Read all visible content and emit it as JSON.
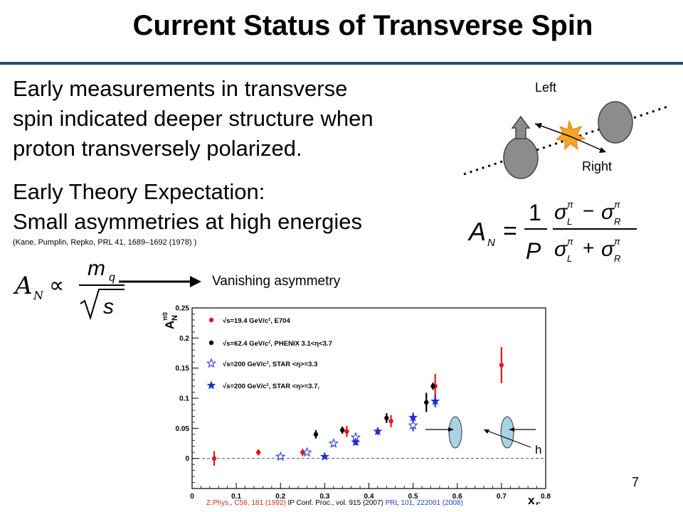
{
  "slide": {
    "title": "Current Status of Transverse Spin",
    "paragraph1_lines": [
      "Early measurements in transverse",
      "spin indicated deeper structure when",
      "proton transversely polarized."
    ],
    "paragraph2_lines": [
      "Early Theory Expectation:",
      "Small asymmetries at high energies"
    ],
    "citation": "(Kane, Pumplin, Repko, PRL 41, 1689–1692 (1978) )",
    "vanishing_label": "Vanishing asymmetry",
    "diagram_left": "Left",
    "diagram_right": "Right",
    "formula_an": {
      "lhs": "A",
      "lhs_sub": "N",
      "frac_num": "1",
      "frac_den": "P",
      "sigma": "σ",
      "sup": "π",
      "sub_l": "L",
      "sub_r": "R",
      "minus": "−",
      "plus": "+",
      "eq": "="
    },
    "formula_prop": {
      "lhs": "A",
      "lhs_sub": "N",
      "prop": "∝",
      "num": "m",
      "num_sub": "q",
      "den": "s"
    },
    "hadron_label": "h",
    "page_number": "7",
    "references": [
      {
        "text": "Z.Phys., C56, 181 (1992)",
        "color": "red"
      },
      {
        "text": " IP Conf. Proc., vol. 915 (2007) ",
        "color": "black"
      },
      {
        "text": "PRL 101, 222001 (2008)",
        "color": "blue"
      }
    ]
  },
  "chart_data": {
    "type": "scatter",
    "ylabel": "A",
    "ylabel_sub": "N",
    "ylabel_sup": "π0",
    "xlabel": "x",
    "xlabel_sub": "F",
    "xlim": [
      0,
      0.8
    ],
    "ylim": [
      -0.05,
      0.25
    ],
    "xticks": [
      "0",
      "0.1",
      "0.2",
      "0.3",
      "0.4",
      "0.5",
      "0.6",
      "0.7",
      "0.8"
    ],
    "yticks": [
      "0",
      "0.05",
      "0.1",
      "0.15",
      "0.2",
      "0.25"
    ],
    "legend_position": "top-left",
    "series": [
      {
        "name": "√s=19.4 GeV/c², E704",
        "color": "#e8141c",
        "marker": "circle",
        "points": [
          {
            "x": 0.05,
            "y": 0.0,
            "err": 0.012
          },
          {
            "x": 0.15,
            "y": 0.01,
            "err": 0.005
          },
          {
            "x": 0.25,
            "y": 0.01,
            "err": 0.006
          },
          {
            "x": 0.35,
            "y": 0.045,
            "err": 0.009
          },
          {
            "x": 0.45,
            "y": 0.062,
            "err": 0.01
          },
          {
            "x": 0.55,
            "y": 0.12,
            "err": 0.02
          },
          {
            "x": 0.7,
            "y": 0.155,
            "err": 0.03
          }
        ]
      },
      {
        "name": "√s=62.4 GeV/c², PHENIX 3.1<η<3.7",
        "color": "#000000",
        "marker": "circle",
        "points": [
          {
            "x": 0.28,
            "y": 0.04,
            "err": 0.007
          },
          {
            "x": 0.34,
            "y": 0.047,
            "err": 0.006
          },
          {
            "x": 0.44,
            "y": 0.067,
            "err": 0.008
          },
          {
            "x": 0.53,
            "y": 0.093,
            "err": 0.016
          },
          {
            "x": 0.545,
            "y": 0.12,
            "err": 0.006
          }
        ]
      },
      {
        "name": "√s=200 GeV/c², STAR <η>=3.3",
        "color": "#2b3fd4",
        "marker": "star-open",
        "points": [
          {
            "x": 0.2,
            "y": 0.003,
            "err": 0.003
          },
          {
            "x": 0.26,
            "y": 0.01,
            "err": 0.004
          },
          {
            "x": 0.32,
            "y": 0.025,
            "err": 0.005
          },
          {
            "x": 0.37,
            "y": 0.035,
            "err": 0.007
          },
          {
            "x": 0.5,
            "y": 0.055,
            "err": 0.01
          }
        ]
      },
      {
        "name": "√s=200 GeV/c², STAR <η>=3.7,",
        "color": "#1e2fd0",
        "marker": "star-filled",
        "points": [
          {
            "x": 0.3,
            "y": 0.003,
            "err": 0.003
          },
          {
            "x": 0.37,
            "y": 0.027,
            "err": 0.005
          },
          {
            "x": 0.42,
            "y": 0.045,
            "err": 0.006
          },
          {
            "x": 0.5,
            "y": 0.068,
            "err": 0.008
          },
          {
            "x": 0.55,
            "y": 0.095,
            "err": 0.01
          }
        ]
      }
    ]
  }
}
